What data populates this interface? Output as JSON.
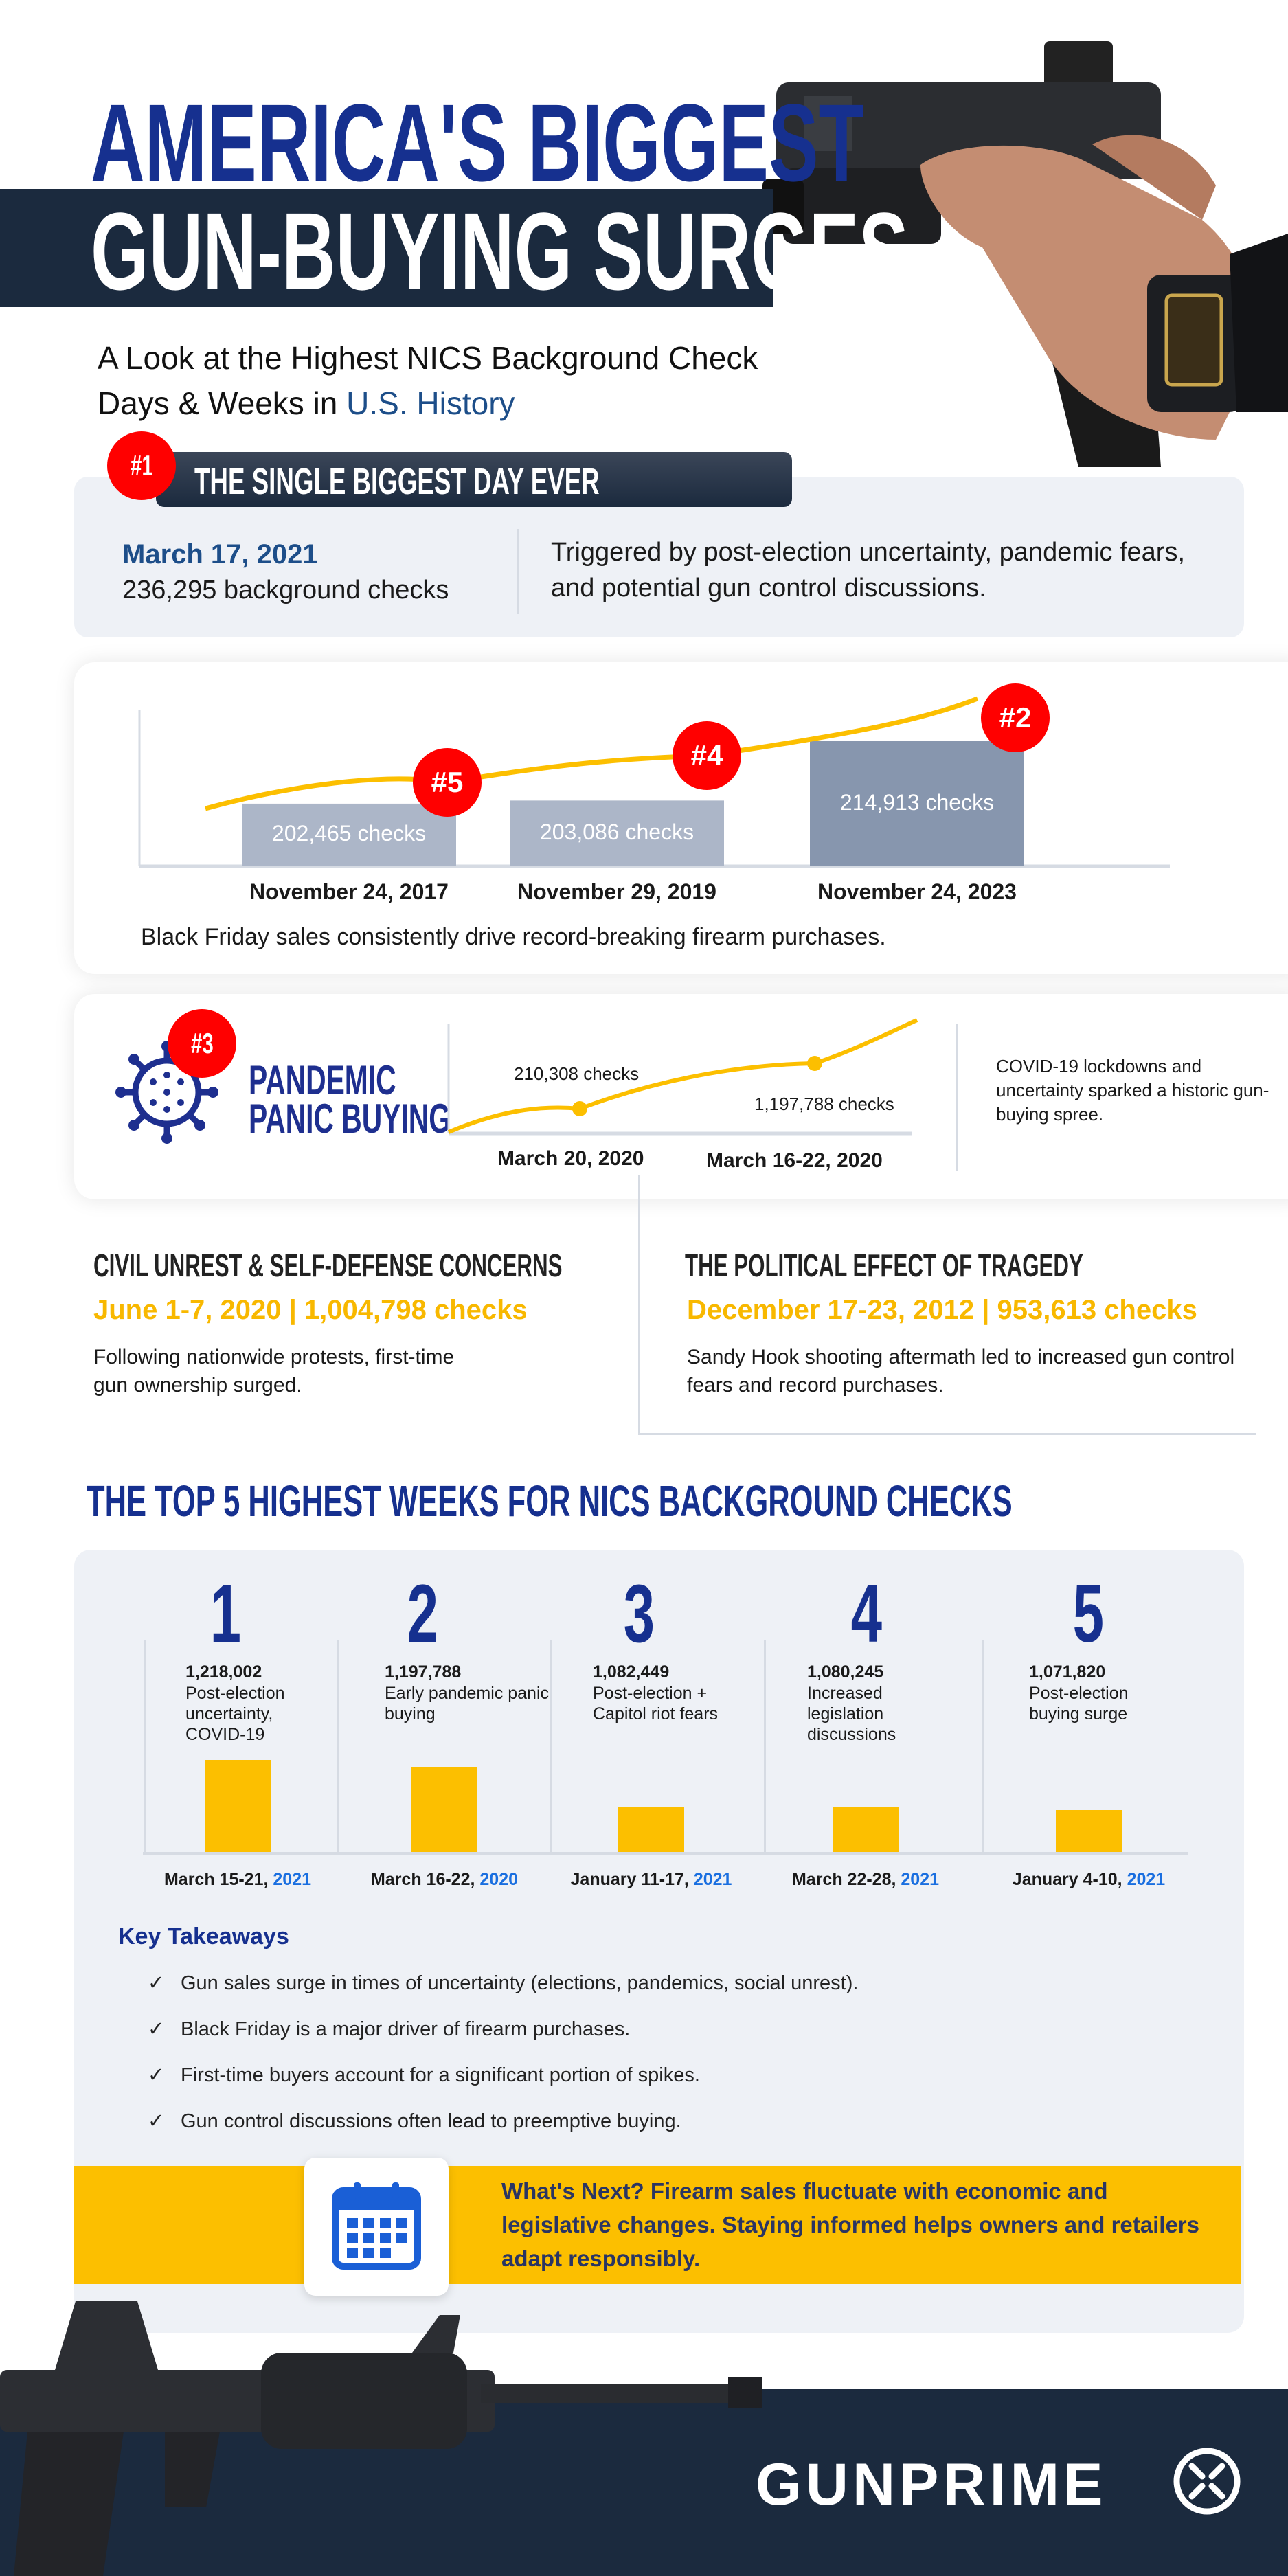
{
  "header": {
    "title_line1": "AMERICA'S BIGGEST",
    "title_line2": "GUN-BUYING SURGES",
    "subtitle_line1": "A Look at the Highest NICS Background Check",
    "subtitle_line2_prefix": "Days & Weeks in ",
    "subtitle_line2_highlight": "U.S. History"
  },
  "biggest_day": {
    "badge": "#1",
    "heading": "THE SINGLE BIGGEST DAY EVER",
    "date": "March 17, 2021",
    "checks": "236,295 background checks",
    "description": "Triggered by post-election uncertainty, pandemic fears, and potential gun control discussions."
  },
  "black_friday": {
    "caption": "Black Friday sales consistently drive record-breaking firearm purchases."
  },
  "pandemic": {
    "badge": "#3",
    "title_line1": "PANDEMIC",
    "title_line2": "PANIC BUYING",
    "description": "COVID-19 lockdowns and uncertainty sparked a historic gun-buying spree."
  },
  "civil_unrest": {
    "heading": "CIVIL UNREST & SELF-DEFENSE CONCERNS",
    "stat": "June 1-7, 2020 | 1,004,798 checks",
    "description": "Following nationwide protests, first-time gun ownership surged."
  },
  "tragedy": {
    "heading": "THE POLITICAL EFFECT OF TRAGEDY",
    "stat": "December 17-23, 2012 | 953,613 checks",
    "description": "Sandy Hook shooting aftermath led to increased gun control fears and record purchases."
  },
  "top5": {
    "heading": "THE TOP 5 HIGHEST WEEKS FOR NICS BACKGROUND CHECKS"
  },
  "takeaways": {
    "heading": "Key Takeaways",
    "check_icon": "✓",
    "items": [
      "Gun sales surge in times of uncertainty (elections, pandemics, social unrest).",
      "Black Friday is a major driver of firearm purchases.",
      "First-time buyers account for a significant portion of spikes.",
      "Gun control discussions often lead to preemptive buying."
    ]
  },
  "whats_next": {
    "icon": "calendar-icon",
    "text": "What's Next? Firearm sales fluctuate with economic and legislative changes. Staying informed helps owners and retailers adapt responsibly."
  },
  "footer": {
    "logo": "GUNPRIME"
  },
  "colors": {
    "navy": "#1b2a3e",
    "title_blue": "#16308f",
    "accent_red": "#ff0000",
    "accent_yellow": "#fcbf00",
    "panel_grey": "#eef1f6"
  },
  "chart_data": [
    {
      "type": "bar",
      "categories": [
        "November 24, 2017",
        "November 29, 2019",
        "November 24, 2023"
      ],
      "values": [
        202465,
        203086,
        214913
      ],
      "value_labels": [
        "202,465  checks",
        "203,086 checks",
        "214,913 checks"
      ],
      "ranks": [
        "#5",
        "#4",
        "#2"
      ],
      "trend_line": true
    },
    {
      "type": "line",
      "points": [
        {
          "label": "March 20, 2020",
          "value_label": "210,308 checks"
        },
        {
          "label": "March 16-22, 2020",
          "value_label": "1,197,788 checks"
        }
      ]
    },
    {
      "type": "bar",
      "ranks": [
        "1",
        "2",
        "3",
        "4",
        "5"
      ],
      "values": [
        1218002,
        1197788,
        1082449,
        1080245,
        1071820
      ],
      "value_labels": [
        "1,218,002",
        "1,197,788",
        "1,082,449",
        "1,080,245",
        "1,071,820"
      ],
      "descriptions": [
        "Post-election uncertainty, COVID-19",
        "Early pandemic panic buying",
        "Post-election + Capitol riot fears",
        "Increased legislation discussions",
        "Post-election buying surge"
      ],
      "categories": [
        "March 15-21, ",
        "March 16-22, ",
        "January 11-17, ",
        "March 22-28, ",
        "January 4-10, "
      ],
      "years": [
        "2021",
        "2020",
        "2021",
        "2021",
        "2021"
      ]
    }
  ]
}
